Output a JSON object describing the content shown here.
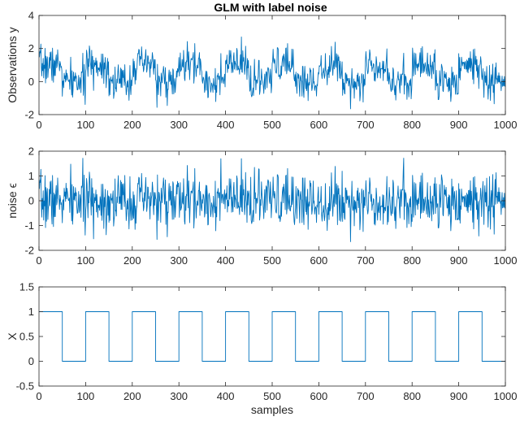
{
  "figure": {
    "title": "GLM with label noise"
  },
  "chart_data": [
    {
      "type": "line",
      "title": "GLM with label noise",
      "xlabel": "",
      "ylabel": "Observations y",
      "xlim": [
        0,
        1000
      ],
      "ylim": [
        -2,
        4
      ],
      "xticks": [
        0,
        100,
        200,
        300,
        400,
        500,
        600,
        700,
        800,
        900,
        1000
      ],
      "yticks": [
        -2,
        0,
        2,
        4
      ],
      "color": "#0072BD",
      "generated": {
        "n_samples": 1000,
        "mean_high": 1,
        "mean_low": 0,
        "block_length": 50,
        "noise_sd": 0.55,
        "seed": 7
      },
      "grid": false
    },
    {
      "type": "line",
      "title": "",
      "xlabel": "",
      "ylabel": "noise ϵ",
      "xlim": [
        0,
        1000
      ],
      "ylim": [
        -2,
        2
      ],
      "xticks": [
        0,
        100,
        200,
        300,
        400,
        500,
        600,
        700,
        800,
        900,
        1000
      ],
      "yticks": [
        -2,
        -1,
        0,
        1,
        2
      ],
      "color": "#0072BD",
      "generated": {
        "n_samples": 1000,
        "mean_high": 0,
        "mean_low": 0,
        "block_length": 50,
        "noise_sd": 0.55,
        "seed": 7
      },
      "grid": false
    },
    {
      "type": "line",
      "title": "",
      "xlabel": "samples",
      "ylabel": "X",
      "xlim": [
        0,
        1000
      ],
      "ylim": [
        -0.5,
        1.5
      ],
      "xticks": [
        0,
        100,
        200,
        300,
        400,
        500,
        600,
        700,
        800,
        900,
        1000
      ],
      "yticks": [
        -0.5,
        0,
        0.5,
        1,
        1.5
      ],
      "color": "#0072BD",
      "step": {
        "x": [
          0,
          50,
          50,
          100,
          100,
          150,
          150,
          200,
          200,
          250,
          250,
          300,
          300,
          350,
          350,
          400,
          400,
          450,
          450,
          500,
          500,
          550,
          550,
          600,
          600,
          650,
          650,
          700,
          700,
          750,
          750,
          800,
          800,
          850,
          850,
          900,
          900,
          950,
          950,
          1000
        ],
        "y": [
          1,
          1,
          0,
          0,
          1,
          1,
          0,
          0,
          1,
          1,
          0,
          0,
          1,
          1,
          0,
          0,
          1,
          1,
          0,
          0,
          1,
          1,
          0,
          0,
          1,
          1,
          0,
          0,
          1,
          1,
          0,
          0,
          1,
          1,
          0,
          0,
          1,
          1,
          0,
          0
        ]
      },
      "grid": false
    }
  ]
}
